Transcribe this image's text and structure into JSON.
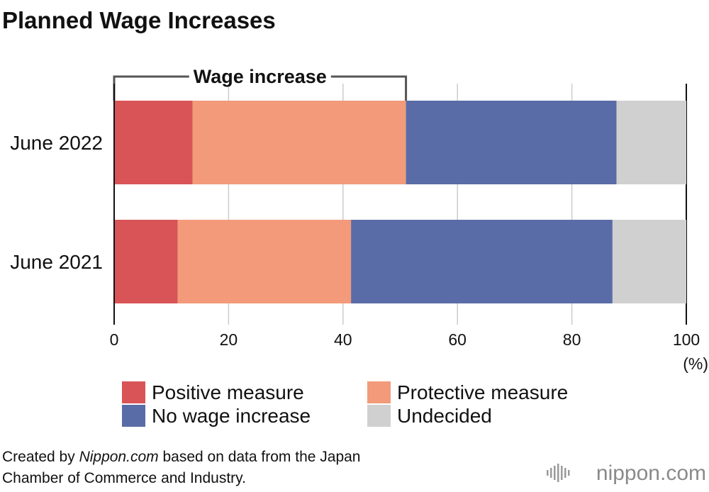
{
  "chart_data": {
    "type": "bar",
    "orientation": "horizontal",
    "stacked": true,
    "title": "Planned Wage Increases",
    "categories": [
      "June 2022",
      "June 2021"
    ],
    "series": [
      {
        "name": "Positive measure",
        "color": "#d95456",
        "values": [
          13.7,
          11.1
        ]
      },
      {
        "name": "Protective measure",
        "color": "#f29a7a",
        "values": [
          37.3,
          30.3
        ]
      },
      {
        "name": "No wage increase",
        "color": "#5a6ca7",
        "values": [
          36.8,
          45.7
        ]
      },
      {
        "name": "Undecided",
        "color": "#d0d0d0",
        "values": [
          12.2,
          12.9
        ]
      }
    ],
    "xlim": [
      0,
      100
    ],
    "xticks": [
      "0",
      "20",
      "40",
      "60",
      "80",
      "100"
    ],
    "xunit": "(%)",
    "grid": true,
    "annotation": {
      "label": "Wage increase",
      "from": 0,
      "to": 51
    }
  },
  "source": {
    "line1_prefix": "Created by ",
    "line1_italic": "Nippon.com",
    "line1_suffix": " based on data from the Japan",
    "line2": "Chamber of Commerce and Industry."
  },
  "logo": {
    "text": "nippon.com"
  }
}
